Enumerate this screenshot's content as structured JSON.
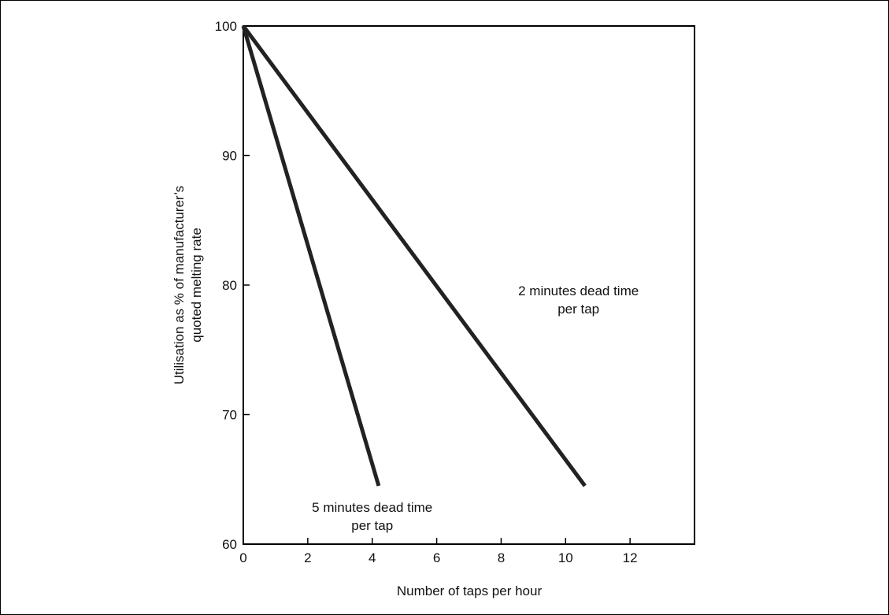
{
  "chart_data": {
    "type": "line",
    "xlabel": "Number of taps per hour",
    "ylabel_lines": [
      "Utilisation as % of manufacturer’s",
      "quoted melting rate"
    ],
    "xlim": [
      0,
      14
    ],
    "ylim": [
      60,
      100
    ],
    "x_ticks": [
      0,
      2,
      4,
      6,
      8,
      10,
      12
    ],
    "y_ticks": [
      60,
      70,
      80,
      90,
      100
    ],
    "grid": false,
    "series": [
      {
        "name": "5 minutes dead time per tap",
        "x": [
          0,
          4.2
        ],
        "y": [
          100,
          64.5
        ],
        "color": "#222222"
      },
      {
        "name": "2 minutes dead time per tap",
        "x": [
          0,
          10.6
        ],
        "y": [
          100,
          64.5
        ],
        "color": "#222222"
      }
    ],
    "annotations": [
      {
        "lines": [
          "5 minutes dead time",
          "per tap"
        ],
        "x": 4.0,
        "y": 62.5
      },
      {
        "lines": [
          "2 minutes dead time",
          "per tap"
        ],
        "x": 10.4,
        "y": 79.2
      }
    ]
  }
}
